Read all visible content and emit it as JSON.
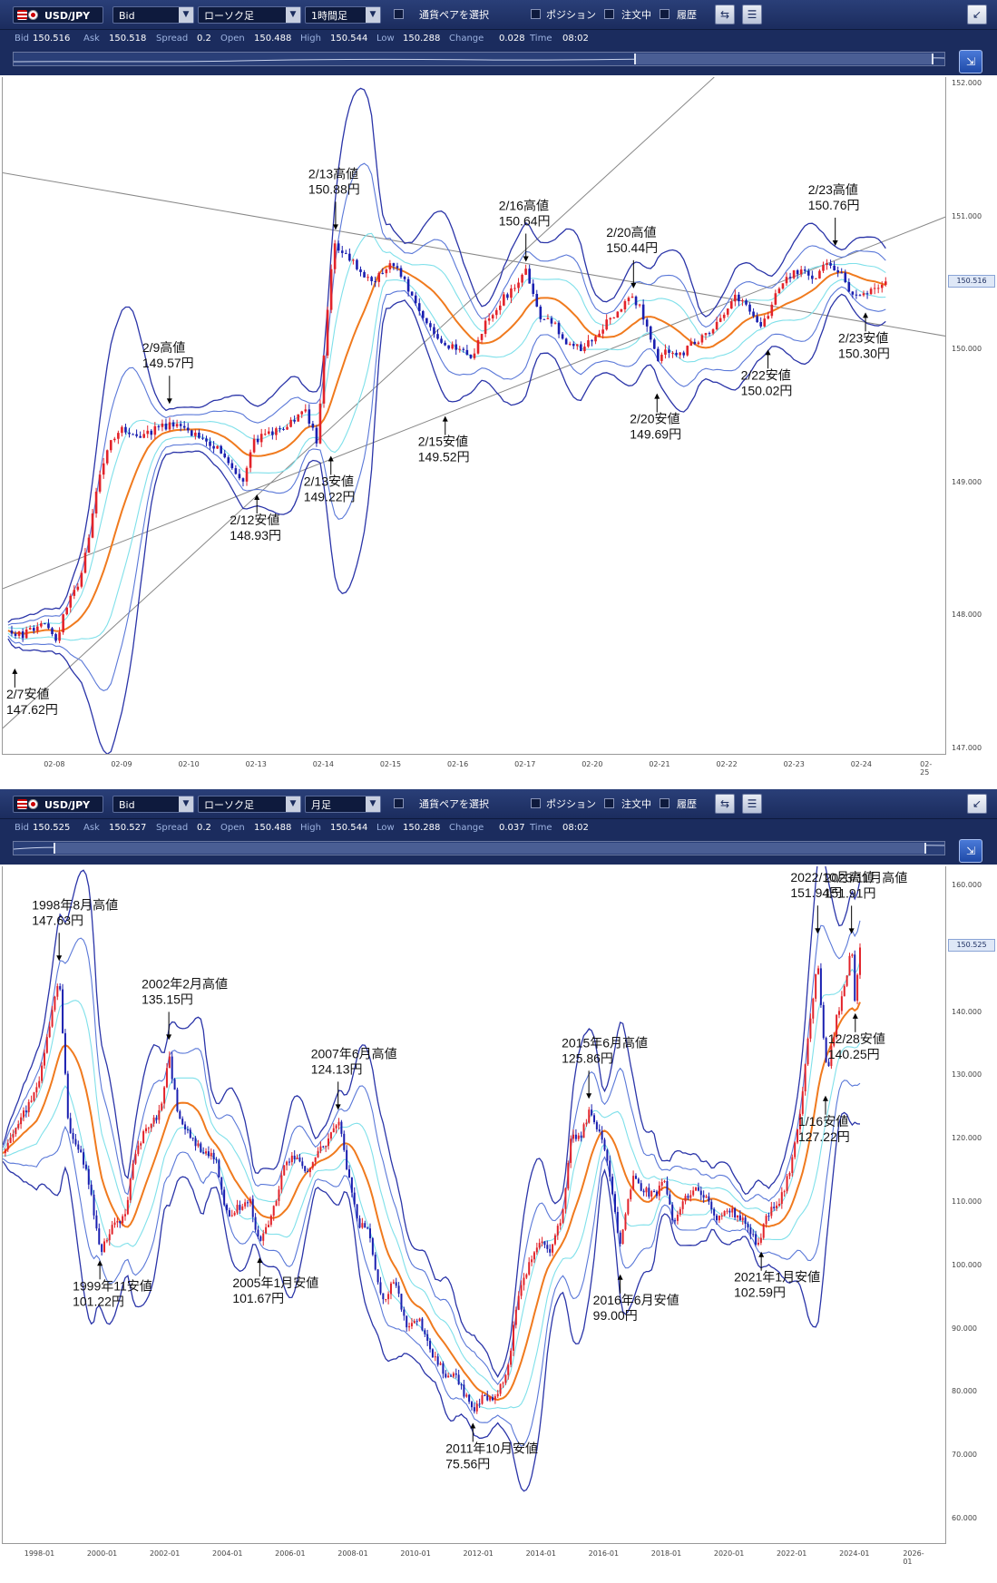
{
  "panels": [
    {
      "id": "hourly",
      "toolbar": {
        "pair": "USD/JPY",
        "price_type": "Bid",
        "chart_type": "ローソク足",
        "timeframe": "1時間足",
        "pair_select_label": "通貨ペアを選択",
        "position_label": "ポジション",
        "orders_label": "注文中",
        "history_label": "履歴"
      },
      "quote": {
        "bid_label": "Bid",
        "bid": "150.516",
        "ask_label": "Ask",
        "ask": "150.518",
        "spread_label": "Spread",
        "spread": "0.2",
        "open_label": "Open",
        "open": "150.488",
        "high_label": "High",
        "high": "150.544",
        "low_label": "Low",
        "low": "150.288",
        "change_label": "Change",
        "change": "0.028",
        "time_label": "Time",
        "time": "08:02"
      },
      "current_price": "150.516",
      "colors": {
        "up": "#e2232a",
        "down": "#1a1fb0",
        "ma": "#f07a1e",
        "band1": "#7fe0ea",
        "band2": "#5a78d8",
        "band3": "#2a34a8",
        "trend": "#888888"
      },
      "chart_data": {
        "type": "candlestick",
        "y_ticks": [
          "152.000",
          "151.000",
          "150.000",
          "149.000",
          "148.000",
          "147.000"
        ],
        "ylim": [
          146.95,
          152.05
        ],
        "x_ticks": [
          "02-08",
          "02-09",
          "02-10",
          "02-13",
          "02-14",
          "02-15",
          "02-16",
          "02-17",
          "02-20",
          "02-21",
          "02-22",
          "02-23",
          "02-24",
          "02-25"
        ],
        "x_tick_pos": [
          0.5,
          1.5,
          2.5,
          3.5,
          4.5,
          5.5,
          6.5,
          7.5,
          8.5,
          9.5,
          10.5,
          11.5,
          12.5,
          13.5
        ],
        "xlim": [
          -0.28,
          13.75
        ],
        "close_path": [
          [
            -0.2,
            147.9
          ],
          [
            0.0,
            147.85
          ],
          [
            0.3,
            147.95
          ],
          [
            0.5,
            147.8
          ],
          [
            0.7,
            148.1
          ],
          [
            0.9,
            148.3
          ],
          [
            1.1,
            148.9
          ],
          [
            1.3,
            149.3
          ],
          [
            1.5,
            149.4
          ],
          [
            1.8,
            149.35
          ],
          [
            2.0,
            149.4
          ],
          [
            2.3,
            149.45
          ],
          [
            2.6,
            149.35
          ],
          [
            2.9,
            149.25
          ],
          [
            3.1,
            149.15
          ],
          [
            3.3,
            149.0
          ],
          [
            3.45,
            149.3
          ],
          [
            3.6,
            149.35
          ],
          [
            3.9,
            149.4
          ],
          [
            4.2,
            149.55
          ],
          [
            4.4,
            149.3
          ],
          [
            4.55,
            150.3
          ],
          [
            4.65,
            150.8
          ],
          [
            4.85,
            150.7
          ],
          [
            5.0,
            150.6
          ],
          [
            5.2,
            150.5
          ],
          [
            5.5,
            150.65
          ],
          [
            5.7,
            150.5
          ],
          [
            5.9,
            150.3
          ],
          [
            6.1,
            150.15
          ],
          [
            6.3,
            150.05
          ],
          [
            6.5,
            150.0
          ],
          [
            6.7,
            149.95
          ],
          [
            6.9,
            150.2
          ],
          [
            7.1,
            150.35
          ],
          [
            7.3,
            150.45
          ],
          [
            7.5,
            150.6
          ],
          [
            7.7,
            150.25
          ],
          [
            7.9,
            150.2
          ],
          [
            8.1,
            150.05
          ],
          [
            8.3,
            150.0
          ],
          [
            8.5,
            150.1
          ],
          [
            8.7,
            150.2
          ],
          [
            8.9,
            150.3
          ],
          [
            9.1,
            150.4
          ],
          [
            9.3,
            150.2
          ],
          [
            9.45,
            149.9
          ],
          [
            9.6,
            150.0
          ],
          [
            9.8,
            149.95
          ],
          [
            10.0,
            150.05
          ],
          [
            10.2,
            150.1
          ],
          [
            10.4,
            150.25
          ],
          [
            10.6,
            150.4
          ],
          [
            10.8,
            150.3
          ],
          [
            11.0,
            150.15
          ],
          [
            11.2,
            150.4
          ],
          [
            11.4,
            150.55
          ],
          [
            11.6,
            150.6
          ],
          [
            11.8,
            150.55
          ],
          [
            12.0,
            150.65
          ],
          [
            12.15,
            150.6
          ],
          [
            12.3,
            150.45
          ],
          [
            12.5,
            150.4
          ],
          [
            12.7,
            150.45
          ],
          [
            12.85,
            150.52
          ]
        ],
        "annotations": [
          {
            "date": "2/7安値",
            "price": "147.62円",
            "x": -0.1,
            "y": 147.62,
            "dir": "low"
          },
          {
            "date": "2/9高値",
            "price": "149.57円",
            "x": 2.2,
            "y": 149.57,
            "dir": "high"
          },
          {
            "date": "2/12安値",
            "price": "148.93円",
            "x": 3.5,
            "y": 148.93,
            "dir": "low"
          },
          {
            "date": "2/13高値",
            "price": "150.88円",
            "x": 4.67,
            "y": 150.88,
            "dir": "high"
          },
          {
            "date": "2/13安値",
            "price": "149.22円",
            "x": 4.6,
            "y": 149.22,
            "dir": "low"
          },
          {
            "date": "2/15安値",
            "price": "149.52円",
            "x": 6.3,
            "y": 149.52,
            "dir": "low"
          },
          {
            "date": "2/16高値",
            "price": "150.64円",
            "x": 7.5,
            "y": 150.64,
            "dir": "high"
          },
          {
            "date": "2/20高値",
            "price": "150.44円",
            "x": 9.1,
            "y": 150.44,
            "dir": "high"
          },
          {
            "date": "2/20安値",
            "price": "149.69円",
            "x": 9.45,
            "y": 149.69,
            "dir": "low"
          },
          {
            "date": "2/22安値",
            "price": "150.02円",
            "x": 11.1,
            "y": 150.02,
            "dir": "low"
          },
          {
            "date": "2/23高値",
            "price": "150.76円",
            "x": 12.1,
            "y": 150.76,
            "dir": "high"
          },
          {
            "date": "2/23安値",
            "price": "150.30円",
            "x": 12.55,
            "y": 150.3,
            "dir": "low"
          }
        ]
      }
    },
    {
      "id": "monthly",
      "toolbar": {
        "pair": "USD/JPY",
        "price_type": "Bid",
        "chart_type": "ローソク足",
        "timeframe": "月足",
        "pair_select_label": "通貨ペアを選択",
        "position_label": "ポジション",
        "orders_label": "注文中",
        "history_label": "履歴"
      },
      "quote": {
        "bid_label": "Bid",
        "bid": "150.525",
        "ask_label": "Ask",
        "ask": "150.527",
        "spread_label": "Spread",
        "spread": "0.2",
        "open_label": "Open",
        "open": "150.488",
        "high_label": "High",
        "high": "150.544",
        "low_label": "Low",
        "low": "150.288",
        "change_label": "Change",
        "change": "0.037",
        "time_label": "Time",
        "time": "08:02"
      },
      "current_price": "150.525",
      "colors": {
        "up": "#e2232a",
        "down": "#1a1fb0",
        "ma": "#f07a1e",
        "band1": "#7fe0ea",
        "band2": "#5a78d8",
        "band3": "#2a34a8",
        "trend": "#888888"
      },
      "chart_data": {
        "type": "candlestick",
        "y_ticks": [
          "160.000",
          "150.000",
          "140.000",
          "130.000",
          "120.000",
          "110.000",
          "100.000",
          "90.000",
          "80.000",
          "70.000",
          "60.000"
        ],
        "ylim": [
          56,
          163
        ],
        "x_ticks": [
          "1998-01",
          "2000-01",
          "2002-01",
          "2004-01",
          "2006-01",
          "2008-01",
          "2010-01",
          "2012-01",
          "2014-01",
          "2016-01",
          "2018-01",
          "2020-01",
          "2022-01",
          "2024-01",
          "2026-01"
        ],
        "x_tick_pos": [
          1998,
          2000,
          2002,
          2004,
          2006,
          2008,
          2010,
          2012,
          2014,
          2016,
          2018,
          2020,
          2022,
          2024,
          2026
        ],
        "xlim": [
          1996.8,
          2026.9
        ],
        "close_path": [
          [
            1996.8,
            118
          ],
          [
            1997.2,
            122
          ],
          [
            1997.6,
            125
          ],
          [
            1998.0,
            130
          ],
          [
            1998.3,
            138
          ],
          [
            1998.6,
            146
          ],
          [
            1998.9,
            122
          ],
          [
            1999.3,
            118
          ],
          [
            1999.6,
            112
          ],
          [
            1999.9,
            102
          ],
          [
            2000.3,
            106
          ],
          [
            2000.7,
            108
          ],
          [
            2001.0,
            117
          ],
          [
            2001.4,
            122
          ],
          [
            2001.8,
            124
          ],
          [
            2002.1,
            133
          ],
          [
            2002.4,
            124
          ],
          [
            2002.8,
            120
          ],
          [
            2003.2,
            118
          ],
          [
            2003.6,
            117
          ],
          [
            2003.9,
            108
          ],
          [
            2004.3,
            109
          ],
          [
            2004.7,
            110
          ],
          [
            2005.0,
            103
          ],
          [
            2005.4,
            108
          ],
          [
            2005.8,
            116
          ],
          [
            2006.1,
            117
          ],
          [
            2006.5,
            115
          ],
          [
            2006.9,
            118
          ],
          [
            2007.2,
            120
          ],
          [
            2007.5,
            123
          ],
          [
            2007.8,
            115
          ],
          [
            2008.1,
            107
          ],
          [
            2008.5,
            105
          ],
          [
            2008.9,
            94
          ],
          [
            2009.3,
            98
          ],
          [
            2009.7,
            90
          ],
          [
            2010.1,
            91
          ],
          [
            2010.5,
            86
          ],
          [
            2010.9,
            83
          ],
          [
            2011.3,
            82
          ],
          [
            2011.8,
            77
          ],
          [
            2012.1,
            79
          ],
          [
            2012.5,
            79
          ],
          [
            2012.9,
            83
          ],
          [
            2013.2,
            94
          ],
          [
            2013.5,
            99
          ],
          [
            2013.9,
            104
          ],
          [
            2014.3,
            102
          ],
          [
            2014.7,
            109
          ],
          [
            2014.9,
            120
          ],
          [
            2015.2,
            120
          ],
          [
            2015.5,
            124
          ],
          [
            2015.9,
            121
          ],
          [
            2016.2,
            113
          ],
          [
            2016.5,
            103
          ],
          [
            2016.9,
            114
          ],
          [
            2017.2,
            112
          ],
          [
            2017.6,
            111
          ],
          [
            2017.9,
            113
          ],
          [
            2018.2,
            107
          ],
          [
            2018.6,
            111
          ],
          [
            2018.9,
            112
          ],
          [
            2019.2,
            111
          ],
          [
            2019.6,
            107
          ],
          [
            2019.9,
            109
          ],
          [
            2020.2,
            108
          ],
          [
            2020.6,
            106
          ],
          [
            2020.9,
            103
          ],
          [
            2021.2,
            108
          ],
          [
            2021.6,
            110
          ],
          [
            2021.9,
            115
          ],
          [
            2022.2,
            122
          ],
          [
            2022.5,
            136
          ],
          [
            2022.8,
            148
          ],
          [
            2022.95,
            138
          ],
          [
            2023.1,
            130
          ],
          [
            2023.4,
            139
          ],
          [
            2023.7,
            145
          ],
          [
            2023.88,
            151
          ],
          [
            2024.0,
            141
          ],
          [
            2024.1,
            148
          ],
          [
            2024.15,
            150.5
          ]
        ],
        "annotations": [
          {
            "date": "1998年8月高値",
            "price": "147.63円",
            "x": 1998.6,
            "y": 147.63,
            "dir": "high"
          },
          {
            "date": "1999年11安値",
            "price": "101.22円",
            "x": 1999.9,
            "y": 101.22,
            "dir": "low"
          },
          {
            "date": "2002年2月高値",
            "price": "135.15円",
            "x": 2002.1,
            "y": 135.15,
            "dir": "high"
          },
          {
            "date": "2005年1月安値",
            "price": "101.67円",
            "x": 2005.0,
            "y": 101.67,
            "dir": "low"
          },
          {
            "date": "2007年6月高値",
            "price": "124.13円",
            "x": 2007.5,
            "y": 124.13,
            "dir": "high"
          },
          {
            "date": "2011年10月安値",
            "price": "75.56円",
            "x": 2011.8,
            "y": 75.56,
            "dir": "low"
          },
          {
            "date": "2015年6月高値",
            "price": "125.86円",
            "x": 2015.5,
            "y": 125.86,
            "dir": "high"
          },
          {
            "date": "2016年6月安値",
            "price": "99.00円",
            "x": 2016.5,
            "y": 99.0,
            "dir": "low"
          },
          {
            "date": "2021年1月安値",
            "price": "102.59円",
            "x": 2021.0,
            "y": 102.59,
            "dir": "low"
          },
          {
            "date": "2022/10月高値",
            "price": "151.94円",
            "x": 2022.8,
            "y": 151.94,
            "dir": "high"
          },
          {
            "date": "2023/11月高値",
            "price": "151.91円",
            "x": 2023.88,
            "y": 151.91,
            "dir": "high"
          },
          {
            "date": "1/16安値",
            "price": "127.22円",
            "x": 2023.05,
            "y": 127.22,
            "dir": "low"
          },
          {
            "date": "12/28安値",
            "price": "140.25円",
            "x": 2024.0,
            "y": 140.25,
            "dir": "low"
          }
        ]
      }
    }
  ]
}
